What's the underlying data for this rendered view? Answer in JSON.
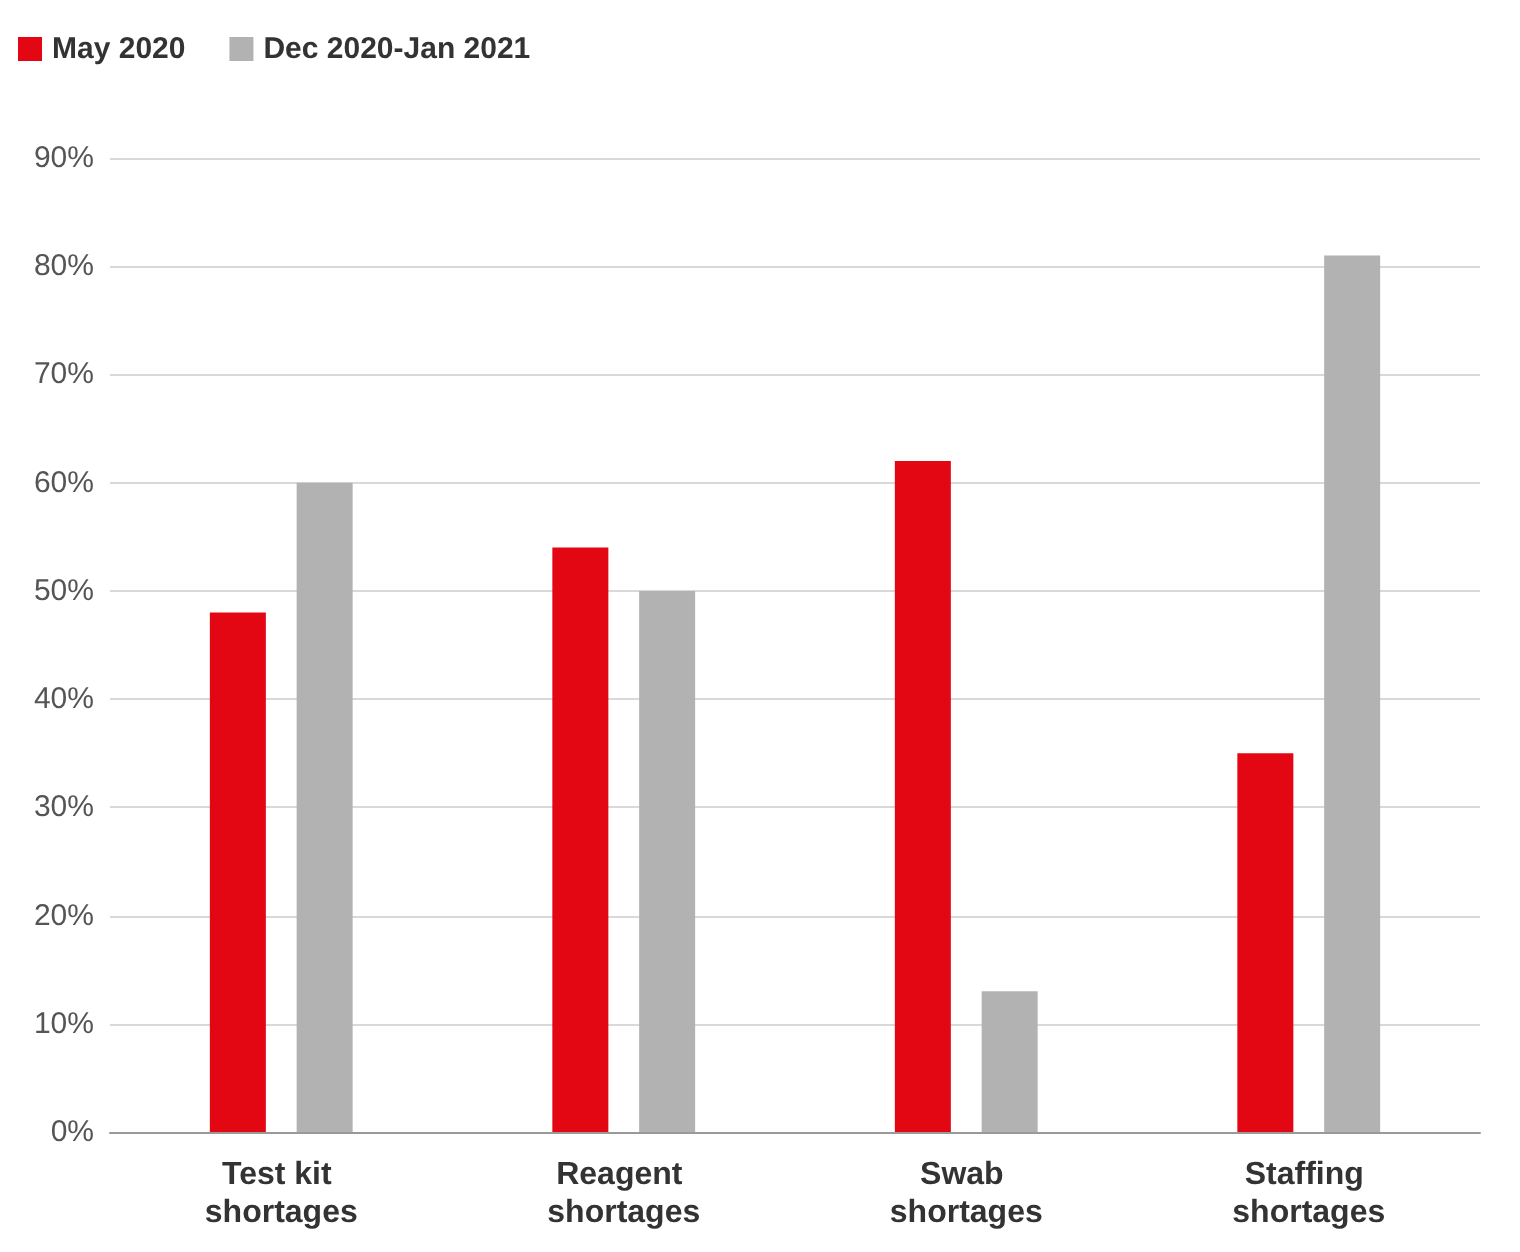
{
  "chart_data": {
    "type": "bar",
    "categories": [
      "Test kit shortages",
      "Reagent shortages",
      "Swab shortages",
      "Staffing shortages"
    ],
    "series": [
      {
        "name": "May 2020",
        "color": "#e30613",
        "values": [
          48,
          54,
          62,
          35
        ]
      },
      {
        "name": "Dec 2020-Jan 2021",
        "color": "#b2b2b2",
        "values": [
          60,
          50,
          13,
          81
        ]
      }
    ],
    "ylim": [
      0,
      90
    ],
    "yticks": [
      {
        "value": 0,
        "label": "0%"
      },
      {
        "value": 10,
        "label": "10%"
      },
      {
        "value": 20,
        "label": "20%"
      },
      {
        "value": 30,
        "label": "30%"
      },
      {
        "value": 40,
        "label": "40%"
      },
      {
        "value": 50,
        "label": "50%"
      },
      {
        "value": 60,
        "label": "60%"
      },
      {
        "value": 70,
        "label": "70%"
      },
      {
        "value": 80,
        "label": "80%"
      },
      {
        "value": 90,
        "label": "90%"
      }
    ],
    "grid": "y",
    "legend": "top left"
  }
}
